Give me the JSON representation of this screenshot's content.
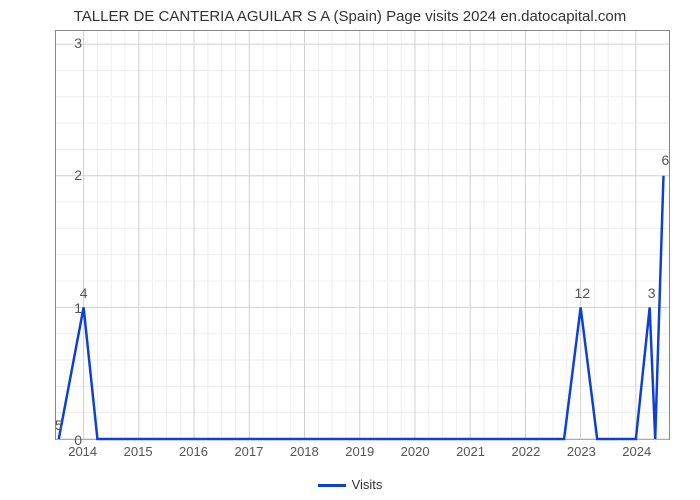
{
  "chart": {
    "type": "line",
    "title": "TALLER DE CANTERIA AGUILAR S A (Spain) Page visits 2024 en.datocapital.com",
    "title_fontsize": 15,
    "background_color": "#ffffff",
    "grid_major_color": "#d0d0d0",
    "grid_minor_color": "#eeeeee",
    "axis_color": "#888888",
    "text_color": "#555555",
    "xlim": [
      2013.5,
      2024.6
    ],
    "ylim": [
      0,
      3.1
    ],
    "ytick_positions": [
      0,
      1,
      2,
      3
    ],
    "ytick_labels": [
      "0",
      "1",
      "2",
      "3"
    ],
    "xtick_positions": [
      2014,
      2015,
      2016,
      2017,
      2018,
      2019,
      2020,
      2021,
      2022,
      2023,
      2024
    ],
    "xtick_labels": [
      "2014",
      "2015",
      "2016",
      "2017",
      "2018",
      "2019",
      "2020",
      "2021",
      "2022",
      "2023",
      "2024"
    ],
    "minor_x_divisions": 4,
    "minor_y_divisions": 5,
    "series": {
      "name": "Visits",
      "color": "#1040d0",
      "line_width": 2.5,
      "points": [
        {
          "x": 2013.55,
          "y": 0,
          "label": "5"
        },
        {
          "x": 2014.0,
          "y": 1,
          "label": "4"
        },
        {
          "x": 2014.25,
          "y": 0
        },
        {
          "x": 2022.7,
          "y": 0
        },
        {
          "x": 2023.0,
          "y": 1,
          "label": "12"
        },
        {
          "x": 2023.3,
          "y": 0
        },
        {
          "x": 2024.0,
          "y": 0
        },
        {
          "x": 2024.25,
          "y": 1,
          "label": "3"
        },
        {
          "x": 2024.35,
          "y": 0
        },
        {
          "x": 2024.5,
          "y": 2,
          "label": "6"
        }
      ]
    },
    "legend_label": "Visits"
  }
}
